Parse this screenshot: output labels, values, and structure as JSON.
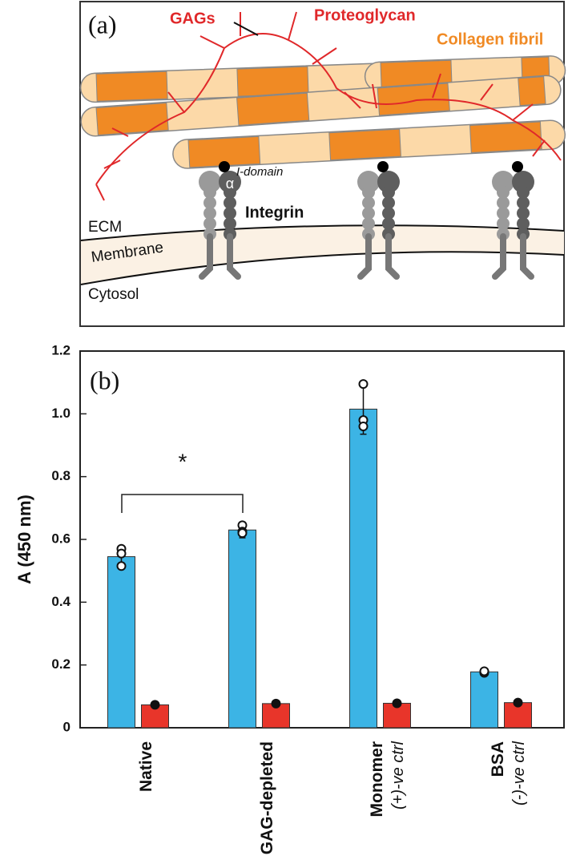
{
  "diagram": {
    "panel_label": "(a)",
    "gags": "GAGs",
    "proteoglycan": "Proteoglycan",
    "collagen": "Collagen fibril",
    "i_domain": "I-domain",
    "alpha": "α",
    "integrin": "Integrin",
    "ecm": "ECM",
    "membrane": "Membrane",
    "cytosol": "Cytosol"
  },
  "chart_data": {
    "type": "bar",
    "panel_label": "(b)",
    "significance": "*",
    "y_label": "A (450 nm)",
    "categories": [
      "Native",
      "GAG-depleted",
      "Monomer",
      "BSA"
    ],
    "category_notes": [
      null,
      null,
      "(+)-ve ctrl",
      "(-)-ve ctrl"
    ],
    "series": [
      {
        "color": "#3cb4e5",
        "values": [
          0.545,
          0.63,
          1.015,
          0.178
        ],
        "errors": [
          0.03,
          0.025,
          0.08,
          0.005
        ],
        "points": [
          [
            0.57,
            0.555,
            0.515
          ],
          [
            0.645,
            0.625,
            0.62
          ],
          [
            1.095,
            0.98,
            0.96
          ],
          [
            0.178,
            0.175,
            0.18
          ]
        ]
      },
      {
        "color": "#e8352a",
        "values": [
          0.073,
          0.077,
          0.078,
          0.08
        ],
        "errors": [
          0.004,
          0.004,
          0.005,
          0.004
        ],
        "points": [
          [
            0.073
          ],
          [
            0.077
          ],
          [
            0.078
          ],
          [
            0.08
          ]
        ]
      }
    ],
    "ylim": [
      0,
      1.2
    ],
    "yticks": [
      0,
      0.2,
      0.4,
      0.6,
      0.8,
      {
        "value": 1,
        "label": "1.0"
      },
      1.2
    ]
  }
}
